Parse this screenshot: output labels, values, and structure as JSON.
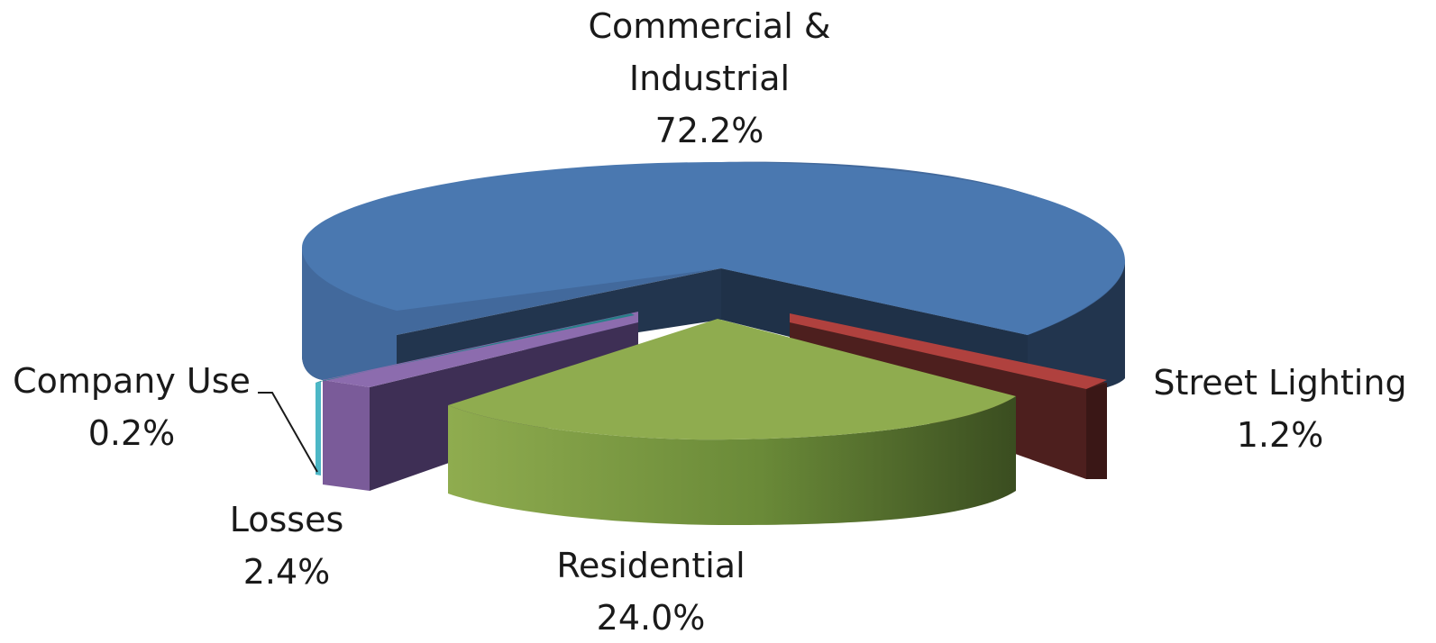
{
  "chart_data": {
    "type": "pie",
    "style": "3d-exploded",
    "title": "",
    "slices": [
      {
        "label": "Commercial & Industrial",
        "value": 72.2,
        "display": "72.2%",
        "color": "#4a78b0",
        "side_color": "#22354e"
      },
      {
        "label": "Street Lighting",
        "value": 1.2,
        "display": "1.2%",
        "color": "#b0413e",
        "side_color": "#4d1f1e"
      },
      {
        "label": "Residential",
        "value": 24.0,
        "display": "24.0%",
        "color": "#8fac4f",
        "side_color": "#4e6a2c"
      },
      {
        "label": "Losses",
        "value": 2.4,
        "display": "2.4%",
        "color": "#7a5b99",
        "side_color": "#3e2f55"
      },
      {
        "label": "Company Use",
        "value": 0.2,
        "display": "0.2%",
        "color": "#4cb7c6",
        "side_color": "#2a7f8a"
      }
    ],
    "label_lines": [
      "Commercial &",
      "Industrial",
      "Street Lighting",
      "Residential",
      "Losses",
      "Company Use"
    ]
  }
}
